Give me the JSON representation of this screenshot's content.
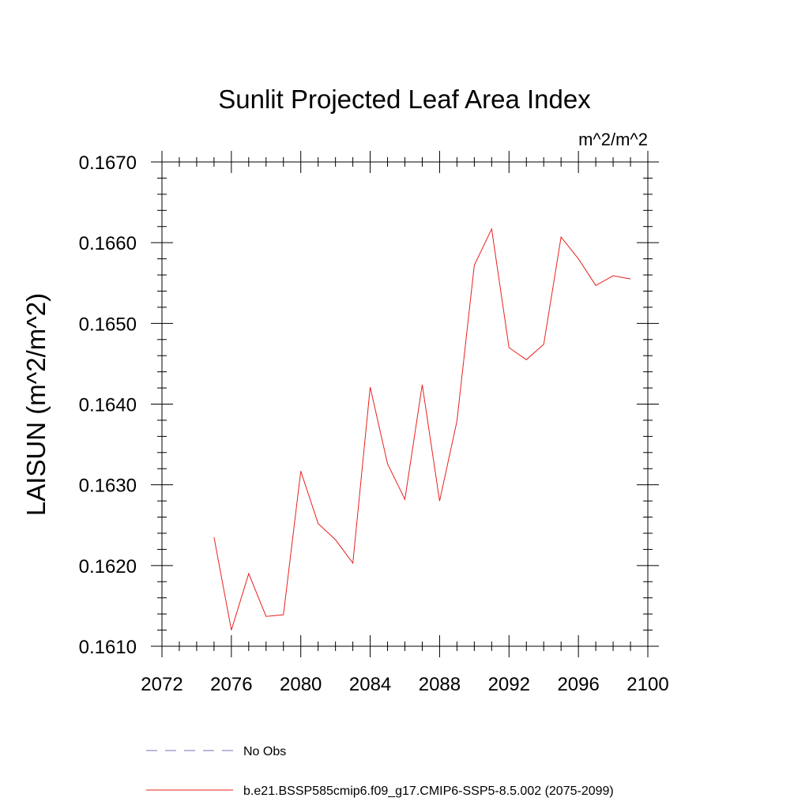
{
  "chart_data": {
    "type": "line",
    "title": "Sunlit Projected Leaf Area Index",
    "units_label": "m^2/m^2",
    "xlabel": "",
    "ylabel": "LAISUN  (m^2/m^2)",
    "xlim": [
      2072,
      2100
    ],
    "ylim": [
      0.161,
      0.167
    ],
    "x_ticks": [
      2072,
      2076,
      2080,
      2084,
      2088,
      2092,
      2096,
      2100
    ],
    "x_tick_labels": [
      "2072",
      "2076",
      "2080",
      "2084",
      "2088",
      "2092",
      "2096",
      "2100"
    ],
    "y_ticks": [
      0.161,
      0.162,
      0.163,
      0.164,
      0.165,
      0.166,
      0.167
    ],
    "y_tick_labels": [
      "0.1610",
      "0.1620",
      "0.1630",
      "0.1640",
      "0.1650",
      "0.1660",
      "0.1670"
    ],
    "grid": false,
    "series": [
      {
        "name": "No Obs",
        "color": "#7b6fb0",
        "dash": "dashed",
        "x": [],
        "y": []
      },
      {
        "name": "b.e21.BSSP585cmip6.f09_g17.CMIP6-SSP5-8.5.002 (2075-2099)",
        "color": "#e8201e",
        "dash": "solid",
        "x": [
          2075,
          2076,
          2077,
          2078,
          2079,
          2080,
          2081,
          2082,
          2083,
          2084,
          2085,
          2086,
          2087,
          2088,
          2089,
          2090,
          2091,
          2092,
          2093,
          2094,
          2095,
          2096,
          2097,
          2098,
          2099
        ],
        "y": [
          0.16235,
          0.1612,
          0.1619,
          0.16137,
          0.16139,
          0.16317,
          0.16252,
          0.16232,
          0.16203,
          0.16421,
          0.16326,
          0.16282,
          0.16424,
          0.1628,
          0.16379,
          0.16572,
          0.16617,
          0.1647,
          0.16455,
          0.16474,
          0.16607,
          0.1658,
          0.16547,
          0.16559,
          0.16555
        ]
      }
    ],
    "legend_position": "bottom"
  }
}
